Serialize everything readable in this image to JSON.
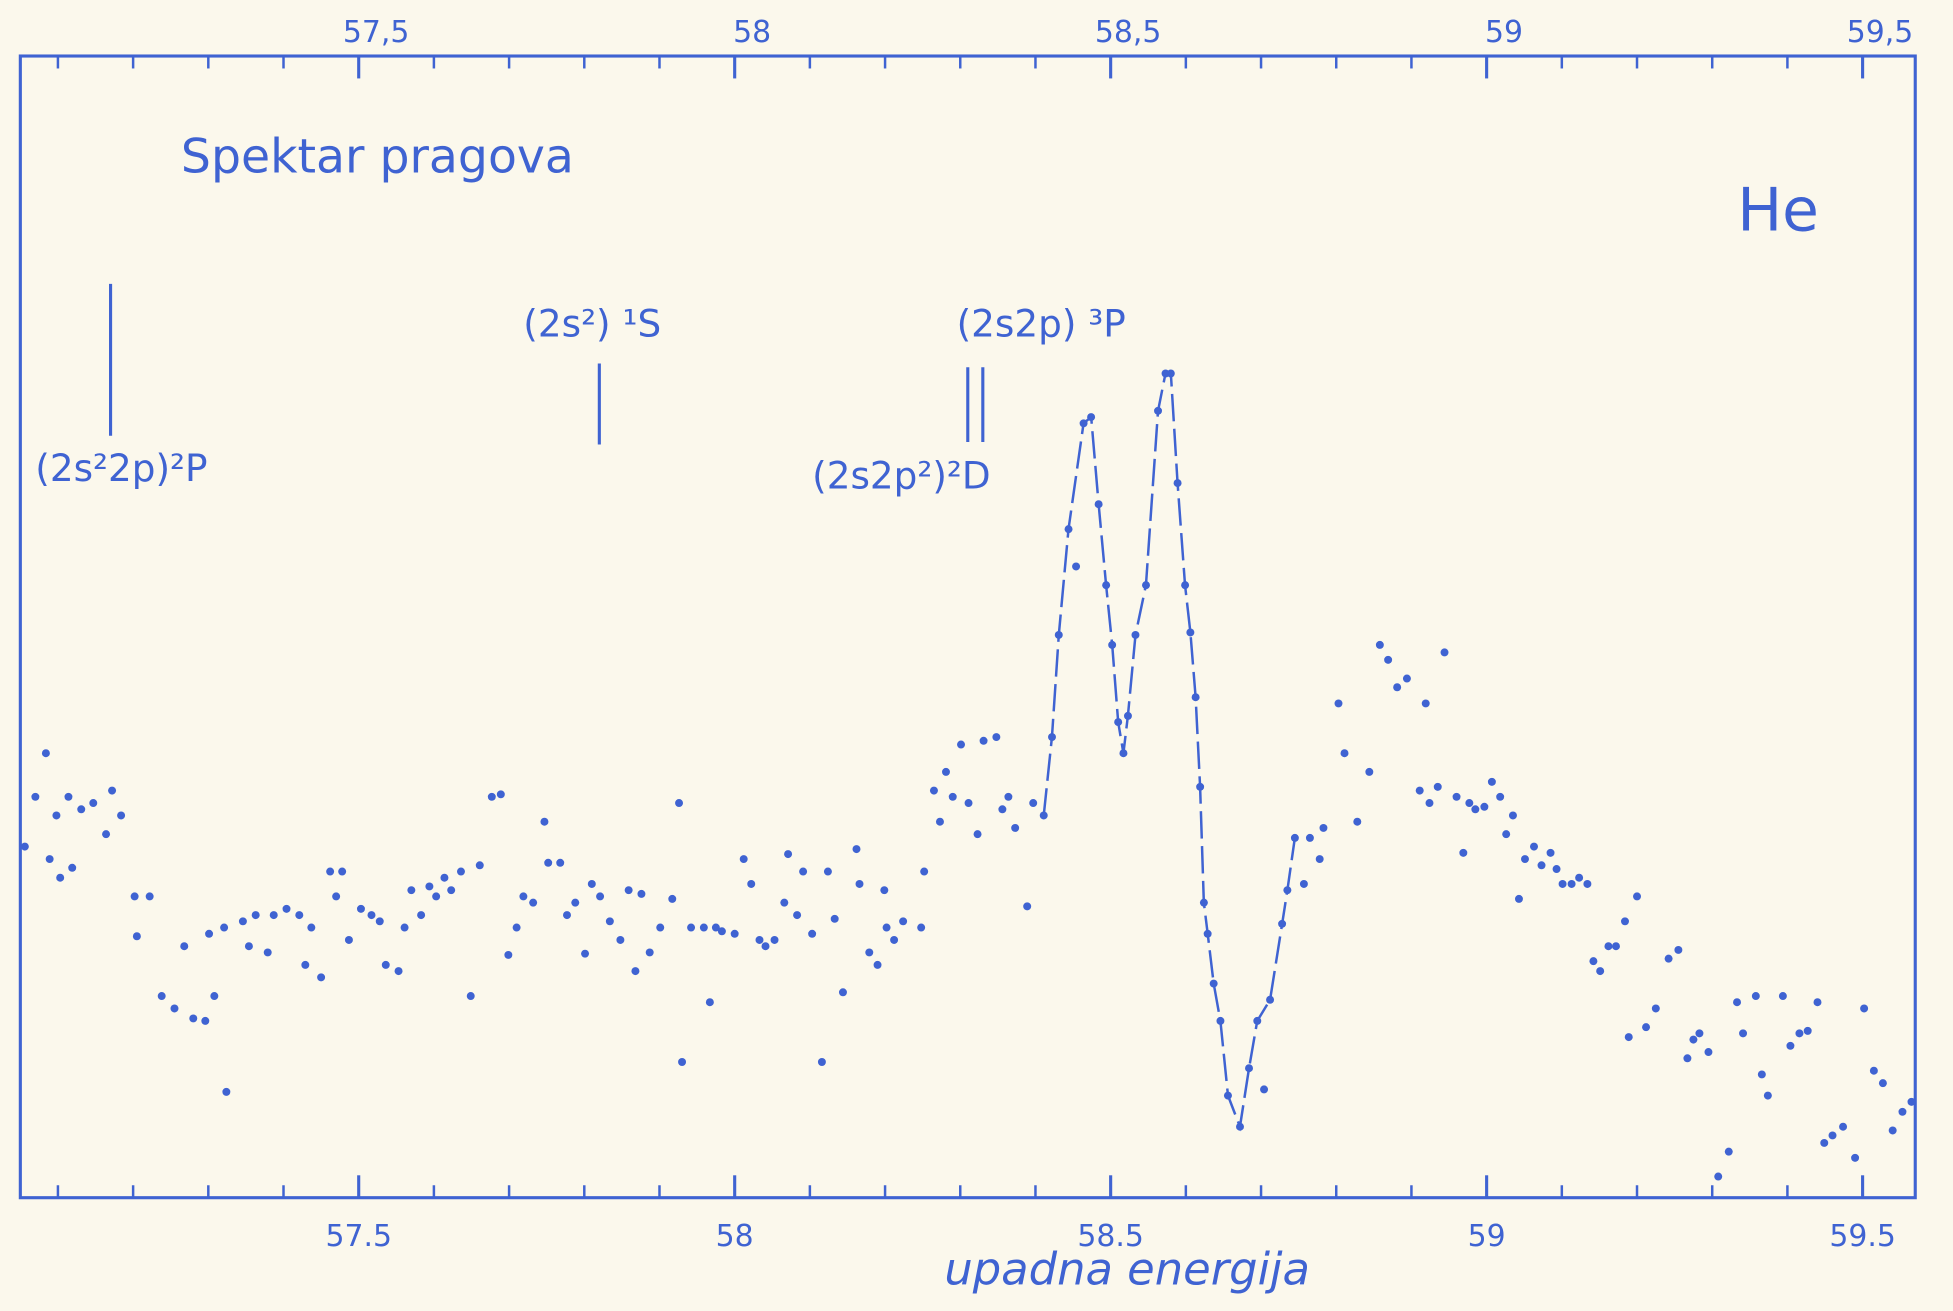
{
  "chart_data": {
    "type": "scatter",
    "title": "Spektar pragova",
    "label": "He",
    "xlabel": "upadna energija",
    "color": "#3f63d2",
    "xlim": [
      57.05,
      59.57
    ],
    "ylim": [
      0,
      91.7
    ],
    "xticks": [
      57.5,
      58,
      58.5,
      59,
      59.5
    ],
    "x2ticks": [
      {
        "value": 57.5,
        "label": "57,5"
      },
      {
        "value": 58,
        "label": "58"
      },
      {
        "value": 58.5,
        "label": "58,5"
      },
      {
        "value": 59,
        "label": "59"
      },
      {
        "value": 59.5,
        "label": "59,5"
      }
    ],
    "xminor_ticks": [
      57.1,
      57.2,
      57.3,
      57.4,
      57.6,
      57.7,
      57.8,
      57.9,
      58.1,
      58.2,
      58.3,
      58.4,
      58.6,
      58.7,
      58.8,
      58.9,
      59.1,
      59.2,
      59.3,
      59.4
    ],
    "annotations": [
      {
        "text": "(2s²2p)²P",
        "x": 57.17
      },
      {
        "text": "(2s²) ¹S",
        "x": 57.82
      },
      {
        "text": "(2s2p²)²D",
        "x": 58.31
      },
      {
        "text": "(2s2p) ³P",
        "x": 58.33
      }
    ],
    "series": [
      {
        "mode": "markers",
        "x": [
          57.084,
          57.07,
          57.056,
          57.098,
          57.114,
          57.131,
          57.147,
          57.164,
          57.172,
          57.184,
          57.089,
          57.119,
          57.103,
          57.202,
          57.222,
          57.205,
          57.238,
          57.255,
          57.268,
          57.28,
          57.296,
          57.308,
          57.321,
          57.324,
          57.301,
          57.346,
          57.354,
          57.363,
          57.379,
          57.387,
          57.404,
          57.421,
          57.429,
          57.437,
          57.45,
          57.462,
          57.47,
          57.478,
          57.487,
          57.503,
          57.517,
          57.528,
          57.536,
          57.553,
          57.561,
          57.57,
          57.583,
          57.594,
          57.603,
          57.614,
          57.623,
          57.636,
          57.649,
          57.661,
          57.677,
          57.689,
          57.699,
          57.71,
          57.719,
          57.732,
          57.747,
          57.752,
          57.768,
          57.777,
          57.788,
          57.801,
          57.81,
          57.821,
          57.834,
          57.848,
          57.859,
          57.868,
          57.876,
          57.887,
          57.901,
          57.917,
          57.926,
          57.93,
          57.942,
          57.959,
          57.967,
          57.975,
          57.983,
          58.0,
          58.012,
          58.022,
          58.033,
          58.041,
          58.053,
          58.066,
          58.071,
          58.083,
          58.091,
          58.103,
          58.116,
          58.124,
          58.133,
          58.144,
          58.162,
          58.166,
          58.179,
          58.19,
          58.199,
          58.202,
          58.212,
          58.224,
          58.248,
          58.252,
          58.265,
          58.273,
          58.281,
          58.29,
          58.301,
          58.311,
          58.323,
          58.331,
          58.348,
          58.356,
          58.364,
          58.373,
          58.389,
          58.397,
          58.454,
          58.704,
          58.757,
          58.765,
          58.778,
          58.783,
          58.803,
          58.811,
          58.828,
          58.844,
          58.858,
          58.869,
          58.881,
          58.894,
          58.911,
          58.919,
          58.924,
          58.935,
          58.944,
          58.96,
          58.969,
          58.977,
          58.985,
          58.997,
          59.007,
          59.018,
          59.026,
          59.035,
          59.043,
          59.051,
          59.063,
          59.073,
          59.085,
          59.093,
          59.101,
          59.113,
          59.123,
          59.134,
          59.142,
          59.151,
          59.162,
          59.172,
          59.184,
          59.189,
          59.2,
          59.212,
          59.225,
          59.242,
          59.255,
          59.267,
          59.275,
          59.283,
          59.295,
          59.308,
          59.322,
          59.333,
          59.341,
          59.358,
          59.366,
          59.374,
          59.394,
          59.404,
          59.416,
          59.427,
          59.44,
          59.449,
          59.46,
          59.474,
          59.49,
          59.502,
          59.515,
          59.527,
          59.54,
          59.553,
          59.565
        ],
        "values": [
          35.7,
          32.2,
          28.2,
          30.7,
          32.2,
          31.2,
          31.7,
          29.2,
          32.7,
          30.7,
          27.2,
          26.5,
          25.7,
          24.2,
          24.2,
          21.0,
          16.2,
          15.2,
          20.2,
          14.4,
          14.2,
          16.2,
          21.7,
          8.5,
          21.2,
          22.2,
          20.2,
          22.7,
          19.7,
          22.7,
          23.2,
          22.7,
          18.7,
          21.7,
          17.7,
          26.2,
          24.2,
          26.2,
          20.7,
          23.2,
          22.7,
          22.2,
          18.7,
          18.2,
          21.7,
          24.7,
          22.7,
          25.0,
          24.2,
          25.7,
          24.7,
          26.2,
          16.2,
          26.7,
          32.2,
          32.4,
          19.5,
          21.7,
          24.2,
          23.7,
          30.2,
          26.9,
          26.9,
          22.7,
          23.7,
          19.6,
          25.2,
          24.2,
          22.2,
          20.7,
          24.7,
          18.2,
          24.4,
          19.7,
          21.7,
          24.0,
          31.7,
          10.9,
          21.7,
          21.7,
          15.7,
          21.7,
          21.4,
          21.2,
          27.2,
          25.2,
          20.7,
          20.2,
          20.7,
          23.7,
          27.6,
          22.7,
          26.2,
          21.2,
          10.9,
          26.2,
          22.4,
          16.5,
          28.0,
          25.2,
          19.7,
          18.7,
          24.7,
          21.7,
          20.7,
          22.2,
          21.7,
          26.2,
          32.7,
          30.2,
          34.2,
          32.2,
          36.4,
          31.7,
          29.2,
          36.7,
          37.0,
          31.2,
          32.2,
          29.7,
          23.4,
          31.7,
          50.7,
          8.7,
          25.2,
          28.9,
          27.2,
          29.7,
          39.7,
          35.7,
          30.2,
          34.2,
          44.4,
          43.2,
          41.0,
          41.7,
          32.7,
          39.7,
          31.7,
          33.0,
          43.8,
          32.2,
          27.7,
          31.7,
          31.2,
          31.4,
          33.4,
          32.2,
          29.2,
          30.7,
          24.0,
          27.2,
          28.2,
          26.7,
          27.7,
          26.4,
          25.2,
          25.2,
          25.7,
          25.2,
          19.0,
          18.2,
          20.2,
          20.2,
          22.2,
          12.9,
          24.2,
          13.7,
          15.2,
          19.2,
          19.9,
          11.2,
          12.7,
          13.2,
          11.7,
          1.7,
          3.7,
          15.7,
          13.2,
          16.2,
          9.9,
          8.2,
          16.2,
          12.2,
          13.2,
          13.4,
          15.7,
          4.4,
          5.0,
          5.7,
          3.2,
          15.2,
          10.2,
          9.2,
          5.4,
          6.9,
          7.7
        ]
      },
      {
        "mode": "lines+markers",
        "x": [
          58.411,
          58.422,
          58.431,
          58.444,
          58.464,
          58.474,
          58.484,
          58.494,
          58.502,
          58.51,
          58.517,
          58.523,
          58.533,
          58.547,
          58.563,
          58.573,
          58.58,
          58.589,
          58.599,
          58.606,
          58.613,
          58.619,
          58.624,
          58.629,
          58.637,
          58.646,
          58.656,
          58.672,
          58.684,
          58.695,
          58.712,
          58.728,
          58.735,
          58.745
        ],
        "values": [
          30.7,
          37.0,
          45.2,
          53.7,
          62.2,
          62.7,
          55.7,
          49.2,
          44.4,
          38.2,
          35.7,
          38.7,
          45.2,
          49.2,
          63.2,
          66.2,
          66.2,
          57.4,
          49.2,
          45.4,
          40.2,
          33.0,
          23.7,
          21.2,
          17.2,
          14.2,
          8.2,
          5.7,
          10.4,
          14.2,
          15.9,
          22.0,
          24.7,
          28.9
        ]
      }
    ]
  }
}
